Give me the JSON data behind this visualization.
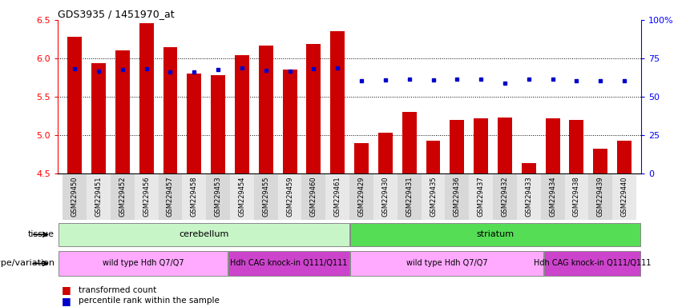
{
  "title": "GDS3935 / 1451970_at",
  "samples": [
    "GSM229450",
    "GSM229451",
    "GSM229452",
    "GSM229456",
    "GSM229457",
    "GSM229458",
    "GSM229453",
    "GSM229454",
    "GSM229455",
    "GSM229459",
    "GSM229460",
    "GSM229461",
    "GSM229429",
    "GSM229430",
    "GSM229431",
    "GSM229435",
    "GSM229436",
    "GSM229437",
    "GSM229432",
    "GSM229433",
    "GSM229434",
    "GSM229438",
    "GSM229439",
    "GSM229440"
  ],
  "bar_values": [
    6.28,
    5.94,
    6.1,
    6.46,
    6.15,
    5.8,
    5.78,
    6.04,
    6.17,
    5.85,
    6.19,
    6.35,
    4.9,
    5.03,
    5.3,
    4.93,
    5.2,
    5.22,
    5.23,
    4.64,
    5.22,
    5.2,
    4.82,
    4.93
  ],
  "percentile_values": [
    5.86,
    5.83,
    5.85,
    5.86,
    5.82,
    5.82,
    5.85,
    5.87,
    5.84,
    5.83,
    5.86,
    5.87,
    5.71,
    5.72,
    5.73,
    5.72,
    5.73,
    5.73,
    5.68,
    5.73,
    5.73,
    5.71,
    5.71,
    5.71
  ],
  "show_percentile_dot": [
    true,
    true,
    true,
    true,
    true,
    true,
    true,
    true,
    true,
    true,
    true,
    true,
    true,
    true,
    true,
    true,
    true,
    true,
    true,
    true,
    true,
    true,
    true,
    true
  ],
  "ymin": 4.5,
  "ymax": 6.5,
  "yticks": [
    4.5,
    5.0,
    5.5,
    6.0,
    6.5
  ],
  "right_yticks_values": [
    0,
    25,
    50,
    75,
    100
  ],
  "right_yticks_labels": [
    "0",
    "25",
    "50",
    "75",
    "100%"
  ],
  "bar_color": "#cc0000",
  "dot_color": "#0000cc",
  "tissue_cerebellum": "cerebellum",
  "tissue_striatum": "striatum",
  "genotype_wt": "wild type Hdh Q7/Q7",
  "genotype_knock": "Hdh CAG knock-in Q111/Q111",
  "wt_cerebellum_count": 7,
  "knock_cerebellum_count": 5,
  "wt_striatum_count": 8,
  "knock_striatum_count": 4,
  "legend_bar_label": "transformed count",
  "legend_dot_label": "percentile rank within the sample",
  "tissue_label": "tissue",
  "genotype_label": "genotype/variation",
  "light_green": "#c8f5c8",
  "bright_green": "#55dd55",
  "light_pink": "#ffaaff",
  "dark_pink": "#cc44cc"
}
